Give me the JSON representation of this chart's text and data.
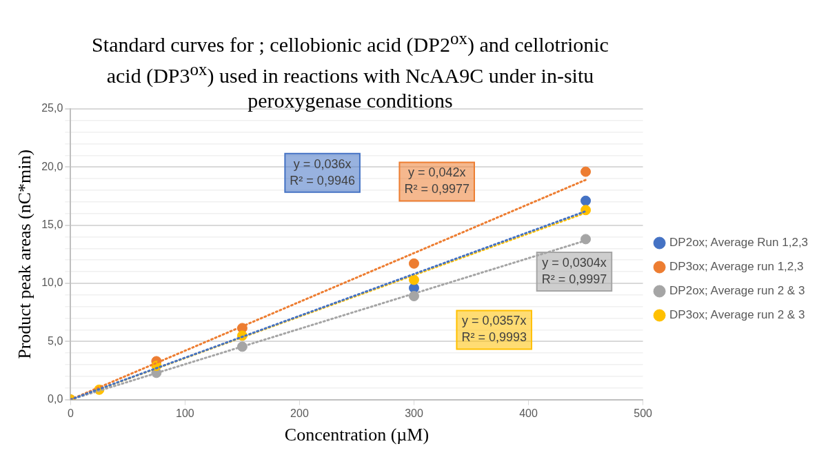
{
  "chart_data": {
    "type": "scatter",
    "title": "Standard curves for ; cellobionic acid (DP2$^{ox}$) and cellotrionic acid (DP3$^{ox}$) used in reactions with NcAA9C under in-situ peroxygenase conditions",
    "xlabel": "Concentration (µM)",
    "ylabel": "Product peak areas (nC*min)",
    "x": [
      0,
      25,
      75,
      150,
      300,
      450
    ],
    "series": [
      {
        "name": "DP2ox; Average Run 1,2,3",
        "color": "#4472c4",
        "values": [
          null,
          null,
          null,
          null,
          9.6,
          17.1
        ]
      },
      {
        "name": "DP3ox; Average run 1,2,3",
        "color": "#ed7d31",
        "values": [
          0,
          null,
          3.3,
          6.15,
          11.7,
          19.6
        ]
      },
      {
        "name": "DP2ox; Average run 2 & 3",
        "color": "#a5a5a5",
        "values": [
          0,
          null,
          2.3,
          4.55,
          8.9,
          13.8
        ]
      },
      {
        "name": "DP3ox; Average run 2 & 3",
        "color": "#ffc000",
        "values": [
          0,
          0.85,
          2.9,
          5.5,
          10.3,
          16.3
        ]
      },
      {
        "type": "line",
        "color": "#4472c4",
        "line_style": "dotted",
        "marker": "none",
        "values": [
          0,
          0.9,
          2.7,
          5.4,
          10.8,
          16.2
        ]
      },
      {
        "type": "line",
        "color": "#ed7d31",
        "line_style": "dotted",
        "marker": "none",
        "values": [
          0,
          1.05,
          3.15,
          6.3,
          12.6,
          18.9
        ]
      },
      {
        "type": "line",
        "color": "#a5a5a5",
        "line_style": "dotted",
        "marker": "none",
        "values": [
          0,
          0.76,
          2.28,
          4.56,
          9.12,
          13.68
        ]
      },
      {
        "type": "line",
        "color": "#ffc000",
        "line_style": "dotted",
        "marker": "none",
        "values": [
          0,
          0.89,
          2.68,
          5.36,
          10.71,
          16.07
        ]
      }
    ],
    "annotations": [
      "y = 0,036x\nR² = 0,9946",
      "y = 0,042x\nR² = 0,9977",
      "y = 0,0304x\nR² = 0,9997",
      "y = 0,0357x\nR² = 0,9993"
    ],
    "marker": "circle",
    "legend": "right",
    "grid": "y",
    "xlim": [
      0,
      500
    ],
    "xticks": [
      0,
      100,
      200,
      300,
      400,
      500
    ],
    "ylim": [
      0,
      25
    ],
    "yticks": [
      {
        "value": 0,
        "label": "0,0"
      },
      {
        "value": 1,
        "label": null
      },
      {
        "value": 2,
        "label": null
      },
      {
        "value": 3,
        "label": null
      },
      {
        "value": 4,
        "label": null
      },
      {
        "value": 5,
        "label": "5,0"
      },
      {
        "value": 6,
        "label": null
      },
      {
        "value": 7,
        "label": null
      },
      {
        "value": 8,
        "label": null
      },
      {
        "value": 9,
        "label": null
      },
      {
        "value": 10,
        "label": "10,0"
      },
      {
        "value": 11,
        "label": null
      },
      {
        "value": 12,
        "label": null
      },
      {
        "value": 13,
        "label": null
      },
      {
        "value": 14,
        "label": null
      },
      {
        "value": 15,
        "label": "15,0"
      },
      {
        "value": 16,
        "label": null
      },
      {
        "value": 17,
        "label": null
      },
      {
        "value": 18,
        "label": null
      },
      {
        "value": 19,
        "label": null
      },
      {
        "value": 20,
        "label": "20,0"
      },
      {
        "value": 21,
        "label": null
      },
      {
        "value": 22,
        "label": null
      },
      {
        "value": 23,
        "label": null
      },
      {
        "value": 24,
        "label": null
      },
      {
        "value": 25,
        "label": "25,0"
      }
    ]
  }
}
